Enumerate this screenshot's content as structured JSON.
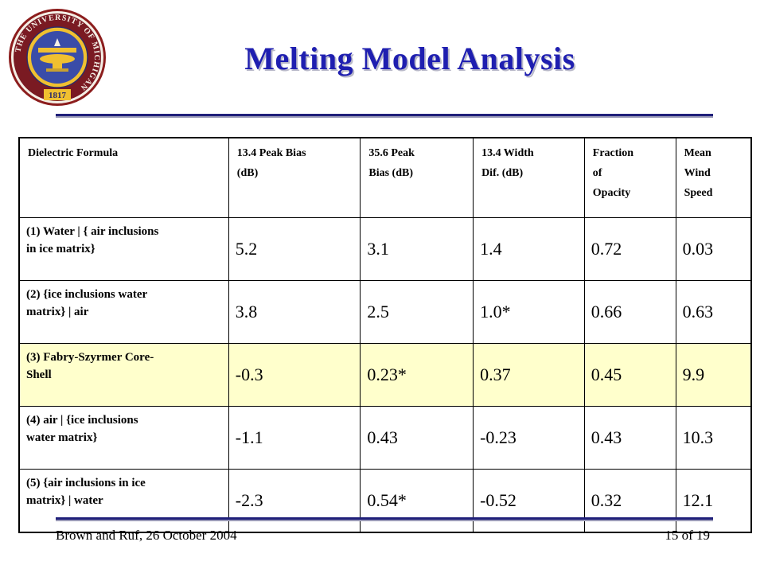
{
  "slide": {
    "title": "Melting Model Analysis",
    "logo": {
      "icon": "university-of-michigan-seal-icon",
      "text": "THE UNIVERSITY OF MICHIGAN",
      "year": "1817",
      "colors": {
        "ring": "#8c1d1d",
        "inner": "#f0c030",
        "center": "#3a4ca8"
      }
    },
    "accent_color": "#1f1fb0"
  },
  "table": {
    "headers": [
      [
        "Dielectric  Formula"
      ],
      [
        "13.4 Peak Bias",
        "(dB)"
      ],
      [
        "35.6 Peak",
        "Bias (dB)"
      ],
      [
        "13.4 Width",
        "Dif. (dB)"
      ],
      [
        "Fraction",
        "of",
        "Opacity"
      ],
      [
        "Mean",
        "Wind",
        "Speed"
      ]
    ],
    "rows": [
      {
        "label": [
          "(1)  Water | { air inclusions",
          "in ice matrix}"
        ],
        "values": [
          "5.2",
          "3.1",
          "1.4",
          "0.72",
          "0.03"
        ],
        "highlight": false
      },
      {
        "label": [
          "(2)  {ice inclusions water",
          "matrix} | air"
        ],
        "values": [
          "3.8",
          "2.5",
          "1.0*",
          "0.66",
          "0.63"
        ],
        "highlight": false
      },
      {
        "label": [
          "(3)  Fabry-Szyrmer Core-",
          "Shell"
        ],
        "values": [
          "-0.3",
          "0.23*",
          "0.37",
          "0.45",
          "9.9"
        ],
        "highlight": true
      },
      {
        "label": [
          "(4)  air | {ice inclusions",
          "water matrix}"
        ],
        "values": [
          "-1.1",
          "0.43",
          "-0.23",
          "0.43",
          "10.3"
        ],
        "highlight": false
      },
      {
        "label": [
          "(5)  {air inclusions in ice",
          "matrix} | water"
        ],
        "values": [
          "-2.3",
          "0.54*",
          "-0.52",
          "0.32",
          "12.1"
        ],
        "highlight": false
      }
    ],
    "highlight_color": "#ffffcc"
  },
  "footer": {
    "left": "Brown and Ruf, 26 October 2004",
    "right": "15 of 19"
  }
}
